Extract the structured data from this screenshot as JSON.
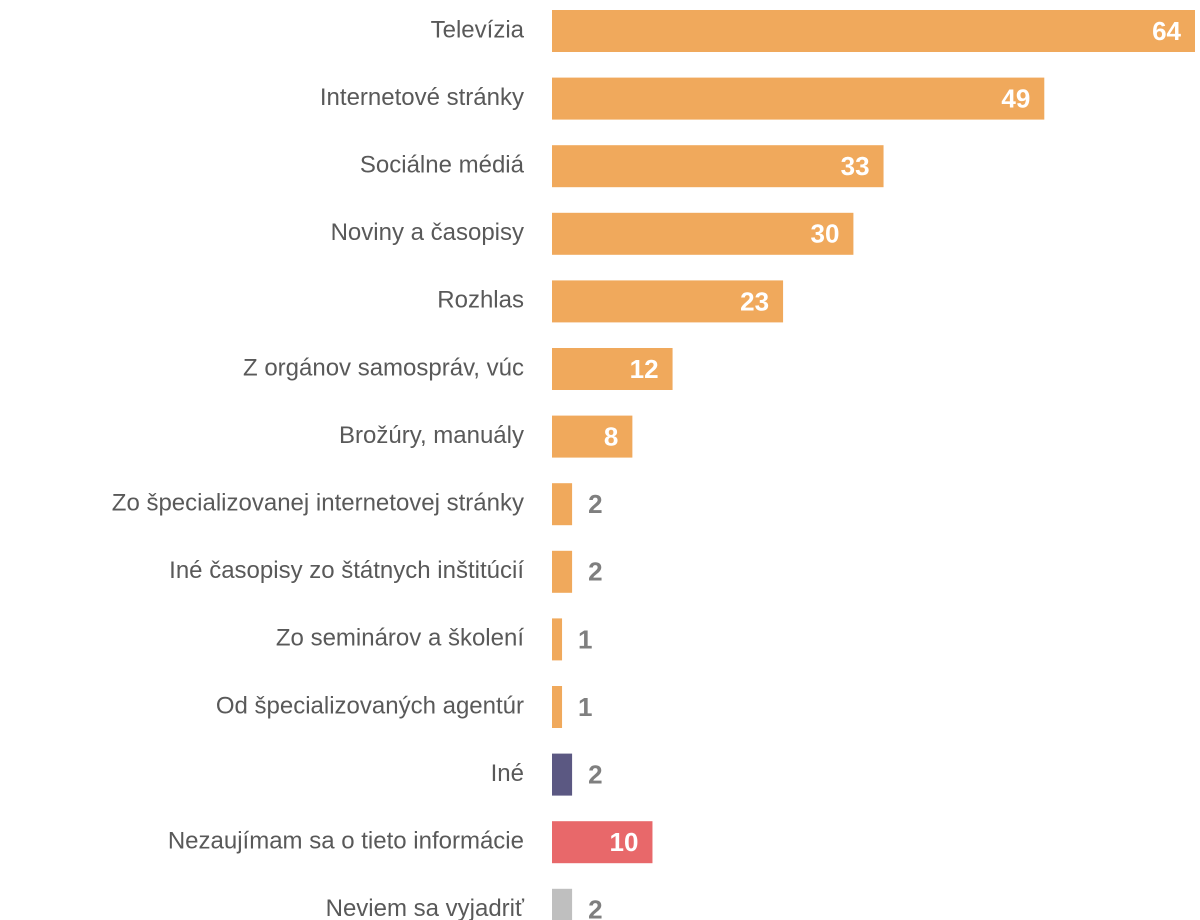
{
  "chart_data": {
    "type": "bar",
    "orientation": "horizontal",
    "categories": [
      "Televízia",
      "Internetové stránky",
      "Sociálne médiá",
      "Noviny a časopisy",
      "Rozhlas",
      "Z orgánov samospráv, vúc",
      "Brožúry, manuály",
      "Zo špecializovanej internetovej stránky",
      "Iné časopisy zo štátnych inštitúcií",
      "Zo seminárov a školení",
      "Od špecializovaných agentúr",
      "Iné",
      "Nezaujímam sa o tieto informácie",
      "Neviem sa vyjadriť"
    ],
    "values": [
      64,
      49,
      33,
      30,
      23,
      12,
      8,
      2,
      2,
      1,
      1,
      2,
      10,
      2
    ],
    "colors": [
      "#f0a95c",
      "#f0a95c",
      "#f0a95c",
      "#f0a95c",
      "#f0a95c",
      "#f0a95c",
      "#f0a95c",
      "#f0a95c",
      "#f0a95c",
      "#f0a95c",
      "#f0a95c",
      "#5b5882",
      "#e8686a",
      "#bfbfbf"
    ]
  }
}
